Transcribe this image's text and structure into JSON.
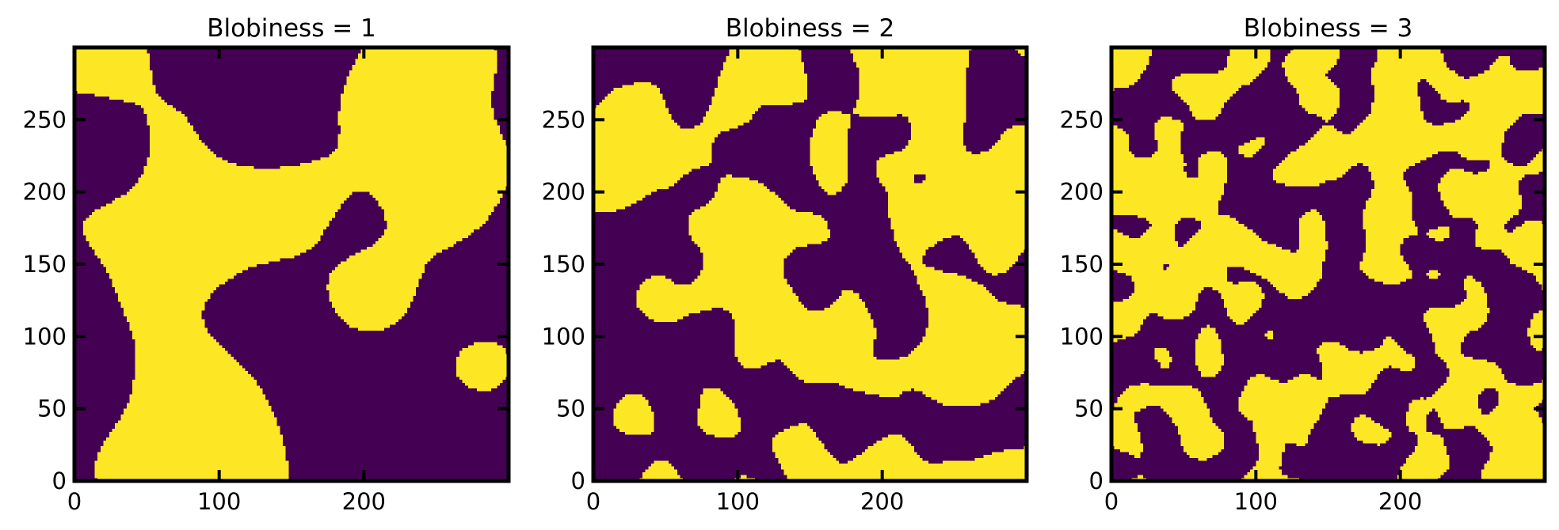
{
  "chart_data": [
    {
      "type": "heatmap",
      "title": "Blobiness = 1",
      "blobiness": 1,
      "xlim": [
        0,
        300
      ],
      "ylim": [
        0,
        300
      ],
      "xticks": [
        0,
        100,
        200
      ],
      "yticks": [
        0,
        50,
        100,
        150,
        200,
        250
      ],
      "values": "binary random blob field (0/1), 300x300 grid",
      "colors": {
        "low": "#440154",
        "high": "#fde725"
      }
    },
    {
      "type": "heatmap",
      "title": "Blobiness = 2",
      "blobiness": 2,
      "xlim": [
        0,
        300
      ],
      "ylim": [
        0,
        300
      ],
      "xticks": [
        0,
        100,
        200
      ],
      "yticks": [
        0,
        50,
        100,
        150,
        200,
        250
      ],
      "values": "binary random blob field (0/1), 300x300 grid",
      "colors": {
        "low": "#440154",
        "high": "#fde725"
      }
    },
    {
      "type": "heatmap",
      "title": "Blobiness = 3",
      "blobiness": 3,
      "xlim": [
        0,
        300
      ],
      "ylim": [
        0,
        300
      ],
      "xticks": [
        0,
        100,
        200
      ],
      "yticks": [
        0,
        50,
        100,
        150,
        200,
        250
      ],
      "values": "binary random blob field (0/1), 300x300 grid",
      "colors": {
        "low": "#440154",
        "high": "#fde725"
      }
    }
  ]
}
